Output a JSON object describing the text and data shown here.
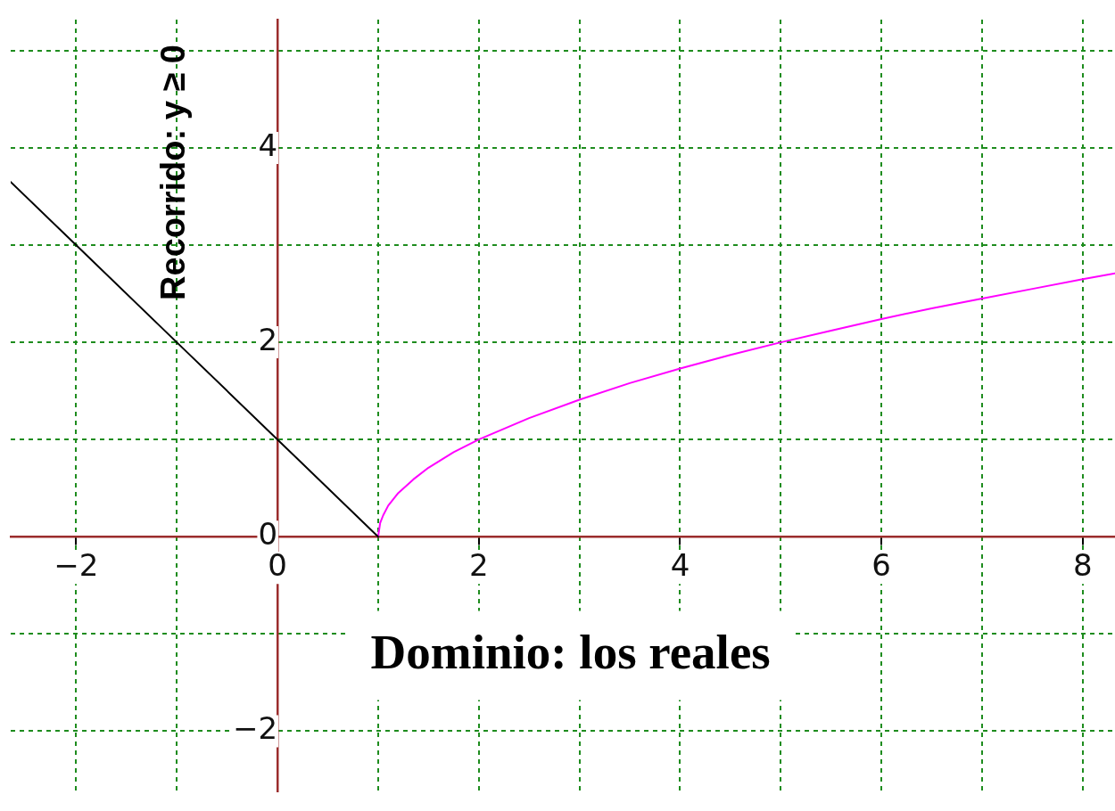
{
  "chart_data": {
    "type": "line",
    "annotations": [
      "Dominio: los reales",
      "Recorrido: y ≥ 0"
    ],
    "xlim": [
      -2.65,
      8.32
    ],
    "ylim": [
      -2.62,
      5.32
    ],
    "xticks": [
      {
        "value": -2,
        "label": "−2"
      },
      {
        "value": -1,
        "label": null
      },
      0,
      {
        "value": 1,
        "label": null
      },
      2,
      {
        "value": 3,
        "label": null
      },
      4,
      {
        "value": 5,
        "label": null
      },
      6,
      {
        "value": 7,
        "label": null
      },
      8
    ],
    "yticks": [
      {
        "value": -2,
        "label": "−2"
      },
      {
        "value": -1,
        "label": null
      },
      0,
      {
        "value": 1,
        "label": null
      },
      2,
      {
        "value": 3,
        "label": null
      },
      4,
      {
        "value": 5,
        "label": null
      }
    ],
    "grid": true,
    "series": [
      {
        "color": "#000000",
        "x": [
          -2.65,
          -2,
          -1,
          0,
          1
        ],
        "values": [
          3.65,
          3,
          2,
          1,
          0
        ]
      },
      {
        "color": "#ff00ff",
        "x": [
          1,
          1.02,
          1.05,
          1.1,
          1.2,
          1.35,
          1.5,
          1.75,
          2,
          2.5,
          3,
          3.5,
          4,
          4.5,
          5,
          5.5,
          6,
          6.5,
          7,
          7.5,
          8,
          8.32
        ],
        "values": [
          0,
          0.14,
          0.22,
          0.32,
          0.45,
          0.59,
          0.71,
          0.87,
          1,
          1.22,
          1.41,
          1.58,
          1.73,
          1.87,
          2,
          2.12,
          2.24,
          2.35,
          2.45,
          2.55,
          2.65,
          2.71
        ]
      }
    ]
  }
}
